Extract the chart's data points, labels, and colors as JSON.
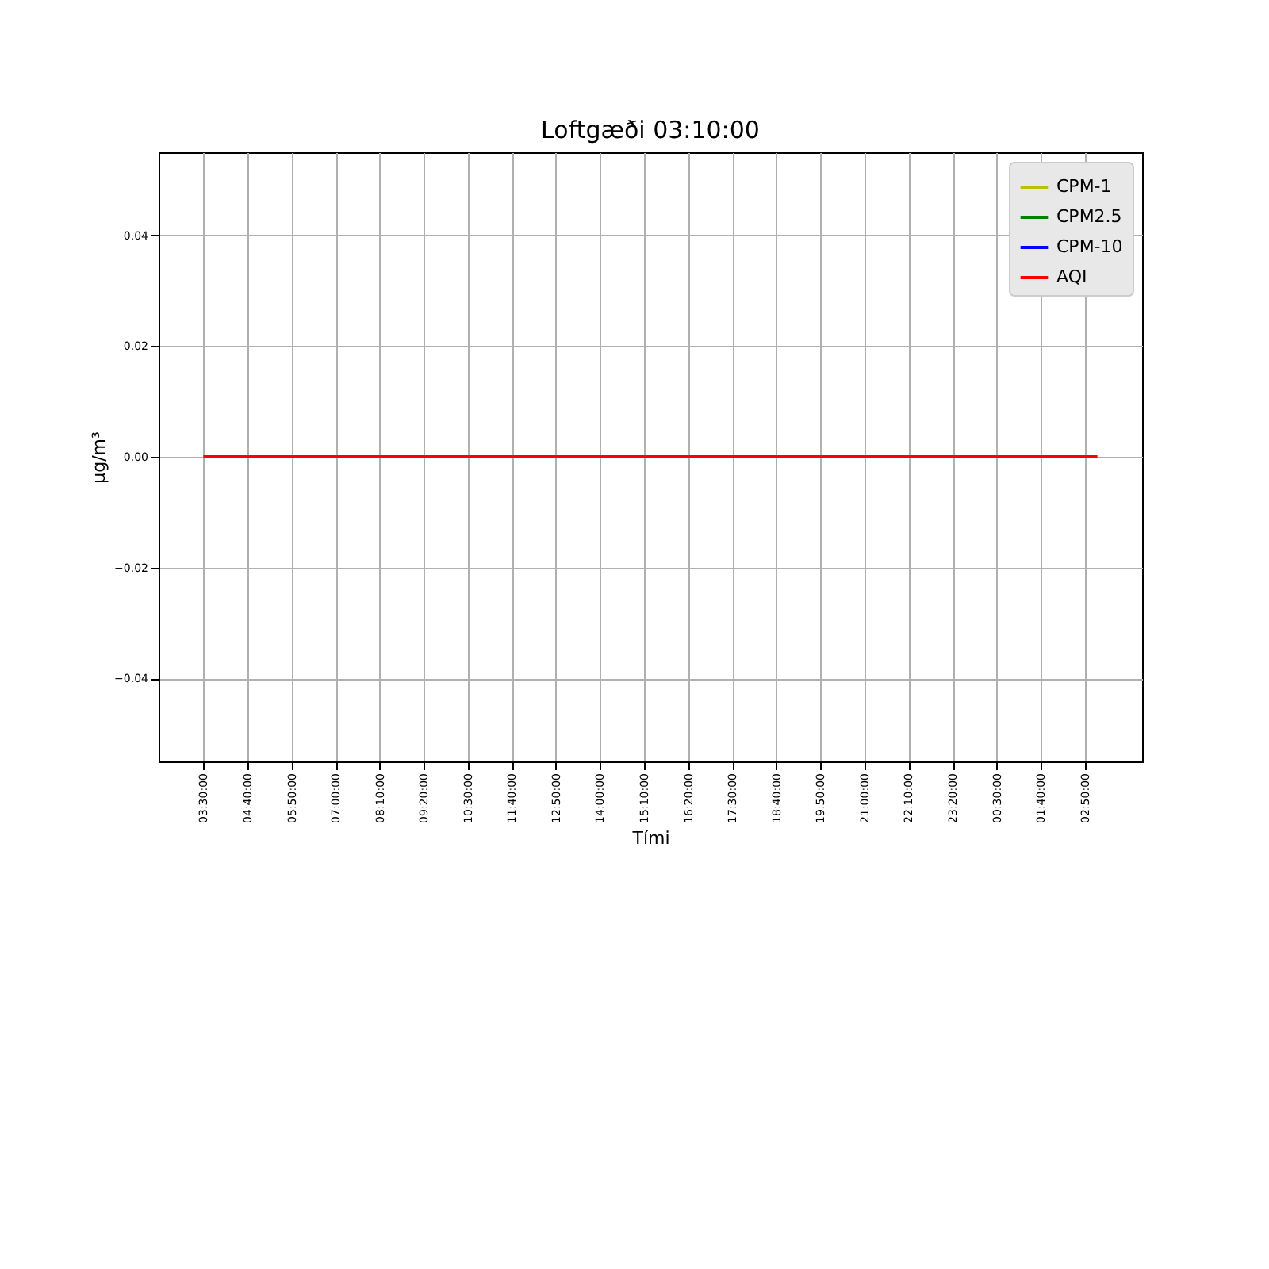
{
  "chart_data": {
    "type": "line",
    "title": "Loftgæði 03:10:00",
    "xlabel": "Tími",
    "ylabel": "µg/m³",
    "categories": [
      "03:30:00",
      null,
      null,
      null,
      null,
      null,
      null,
      "04:40:00",
      null,
      null,
      null,
      null,
      null,
      null,
      "05:50:00",
      null,
      null,
      null,
      null,
      null,
      null,
      "07:00:00",
      null,
      null,
      null,
      null,
      null,
      null,
      "08:10:00",
      null,
      null,
      null,
      null,
      null,
      null,
      "09:20:00",
      null,
      null,
      null,
      null,
      null,
      null,
      "10:30:00",
      null,
      null,
      null,
      null,
      null,
      null,
      "11:40:00",
      null,
      null,
      null,
      null,
      null,
      null,
      "12:50:00",
      null,
      null,
      null,
      null,
      null,
      null,
      "14:00:00",
      null,
      null,
      null,
      null,
      null,
      null,
      "15:10:00",
      null,
      null,
      null,
      null,
      null,
      null,
      "16:20:00",
      null,
      null,
      null,
      null,
      null,
      null,
      "17:30:00",
      null,
      null,
      null,
      null,
      null,
      null,
      "18:40:00",
      null,
      null,
      null,
      null,
      null,
      null,
      "19:50:00",
      null,
      null,
      null,
      null,
      null,
      null,
      "21:00:00",
      null,
      null,
      null,
      null,
      null,
      null,
      "22:10:00",
      null,
      null,
      null,
      null,
      null,
      null,
      "23:20:00",
      null,
      null,
      null,
      null,
      null,
      null,
      "00:30:00",
      null,
      null,
      null,
      null,
      null,
      null,
      "01:40:00",
      null,
      null,
      null,
      null,
      null,
      null,
      "02:50:00",
      null,
      null
    ],
    "series": [
      {
        "name": "CPM-1",
        "color": "#bfbf00",
        "values": [
          null,
          null,
          null,
          null,
          null,
          null,
          null,
          null,
          null,
          null,
          null,
          null,
          null,
          null,
          null,
          null,
          null,
          null,
          null,
          null,
          null,
          null,
          null,
          null,
          null,
          null,
          null,
          null,
          null,
          null,
          null,
          null,
          null,
          null,
          null,
          null,
          null,
          null,
          null,
          null,
          null,
          null,
          null,
          null,
          null,
          null,
          null,
          null,
          null,
          null,
          null,
          null,
          null,
          null,
          null,
          null,
          null,
          null,
          null,
          null,
          null,
          null,
          null,
          null,
          null,
          null,
          null,
          null,
          null,
          null,
          null,
          null,
          null,
          null,
          null,
          null,
          null,
          null,
          null,
          null,
          null,
          null,
          null,
          null,
          null,
          null,
          null,
          null,
          null,
          null,
          null,
          null,
          null,
          null,
          null,
          null,
          null,
          null,
          null,
          null,
          null,
          null,
          null,
          null,
          null,
          null,
          null,
          null,
          null,
          null,
          null,
          null,
          null,
          null,
          null,
          null,
          null,
          null,
          null,
          null,
          null,
          null,
          null,
          null,
          null,
          null,
          null,
          null,
          null,
          null,
          null,
          null,
          null,
          null,
          null,
          null,
          null,
          null,
          null,
          null,
          null,
          null,
          null
        ]
      },
      {
        "name": "CPM2.5",
        "color": "#008000",
        "values": [
          null,
          null,
          null,
          null,
          null,
          null,
          null,
          null,
          null,
          null,
          null,
          null,
          null,
          null,
          null,
          null,
          null,
          null,
          null,
          null,
          null,
          null,
          null,
          null,
          null,
          null,
          null,
          null,
          null,
          null,
          null,
          null,
          null,
          null,
          null,
          null,
          null,
          null,
          null,
          null,
          null,
          null,
          null,
          null,
          null,
          null,
          null,
          null,
          null,
          null,
          null,
          null,
          null,
          null,
          null,
          null,
          null,
          null,
          null,
          null,
          null,
          null,
          null,
          null,
          null,
          null,
          null,
          null,
          null,
          null,
          null,
          null,
          null,
          null,
          null,
          null,
          null,
          null,
          null,
          null,
          null,
          null,
          null,
          null,
          null,
          null,
          null,
          null,
          null,
          null,
          null,
          null,
          null,
          null,
          null,
          null,
          null,
          null,
          null,
          null,
          null,
          null,
          null,
          null,
          null,
          null,
          null,
          null,
          null,
          null,
          null,
          null,
          null,
          null,
          null,
          null,
          null,
          null,
          null,
          null,
          null,
          null,
          null,
          null,
          null,
          null,
          null,
          null,
          null,
          null,
          null,
          null,
          null,
          null,
          null,
          null,
          null,
          null,
          null,
          null,
          null,
          null,
          null
        ]
      },
      {
        "name": "CPM-10",
        "color": "#0000ff",
        "values": [
          null,
          null,
          null,
          null,
          null,
          null,
          null,
          null,
          null,
          null,
          null,
          null,
          null,
          null,
          null,
          null,
          null,
          null,
          null,
          null,
          null,
          null,
          null,
          null,
          null,
          null,
          null,
          null,
          null,
          null,
          null,
          null,
          null,
          null,
          null,
          null,
          null,
          null,
          null,
          null,
          null,
          null,
          null,
          null,
          null,
          null,
          null,
          null,
          null,
          null,
          null,
          null,
          null,
          null,
          null,
          null,
          null,
          null,
          null,
          null,
          null,
          null,
          null,
          null,
          null,
          null,
          null,
          null,
          null,
          null,
          null,
          null,
          null,
          null,
          null,
          null,
          null,
          null,
          null,
          null,
          null,
          null,
          null,
          null,
          null,
          null,
          null,
          null,
          null,
          null,
          null,
          null,
          null,
          null,
          null,
          null,
          null,
          null,
          null,
          null,
          null,
          null,
          null,
          null,
          null,
          null,
          null,
          null,
          null,
          null,
          null,
          null,
          null,
          null,
          null,
          null,
          null,
          null,
          null,
          null,
          null,
          null,
          null,
          null,
          null,
          null,
          null,
          null,
          null,
          null,
          null,
          null,
          null,
          null,
          null,
          null,
          null,
          null,
          null,
          null,
          null,
          null,
          null
        ]
      },
      {
        "name": "AQI",
        "color": "#ff0000",
        "values": [
          0,
          0,
          0,
          0,
          0,
          0,
          0,
          0,
          0,
          0,
          0,
          0,
          0,
          0,
          0,
          0,
          0,
          0,
          0,
          0,
          0,
          0,
          0,
          0,
          0,
          0,
          0,
          0,
          0,
          0,
          0,
          0,
          0,
          0,
          0,
          0,
          0,
          0,
          0,
          0,
          0,
          0,
          0,
          0,
          0,
          0,
          0,
          0,
          0,
          0,
          0,
          0,
          0,
          0,
          0,
          0,
          0,
          0,
          0,
          0,
          0,
          0,
          0,
          0,
          0,
          0,
          0,
          0,
          0,
          0,
          0,
          0,
          0,
          0,
          0,
          0,
          0,
          0,
          0,
          0,
          0,
          0,
          0,
          0,
          0,
          0,
          0,
          0,
          0,
          0,
          0,
          0,
          0,
          0,
          0,
          0,
          0,
          0,
          0,
          0,
          0,
          0,
          0,
          0,
          0,
          0,
          0,
          0,
          0,
          0,
          0,
          0,
          0,
          0,
          0,
          0,
          0,
          0,
          0,
          0,
          0,
          0,
          0,
          0,
          0,
          0,
          0,
          0,
          0,
          0,
          0,
          0,
          0,
          0,
          0,
          0,
          0,
          0,
          0,
          0,
          0,
          0,
          0
        ]
      }
    ],
    "ylim": [
      -0.055,
      0.055
    ],
    "yticks": [
      {
        "value": -0.04,
        "label": "−0.04"
      },
      {
        "value": -0.02,
        "label": "−0.02"
      },
      {
        "value": 0,
        "label": "0.00"
      },
      {
        "value": 0.02,
        "label": "0.02"
      },
      {
        "value": 0.04,
        "label": "0.04"
      }
    ],
    "grid": true,
    "legend": "top right",
    "line_style": "solid",
    "marker": "none"
  }
}
